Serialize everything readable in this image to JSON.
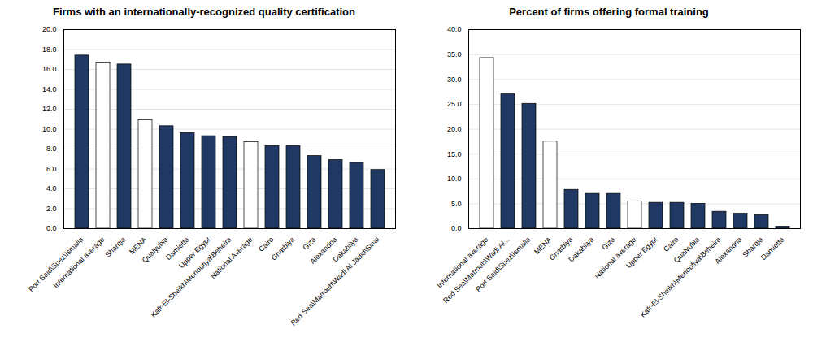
{
  "chart_data": [
    {
      "type": "bar",
      "title": "Firms with an internationally-recognized quality certification",
      "categories": [
        "Port Said\\Suez\\Ismalia",
        "International average",
        "Sharqia",
        "MENA",
        "Qualyubia",
        "Damietta",
        "Upper Egypt",
        "Kafr-El-Sheikh\\Menoufiya\\Beheira",
        "National Average",
        "Cairo",
        "Gharbiya",
        "Giza",
        "Alexandria",
        "Dakahliya",
        "Red Sea\\Matrouh\\Wadi Al Jadid\\Sinai"
      ],
      "values": [
        17.4,
        16.7,
        16.5,
        10.9,
        10.3,
        9.6,
        9.3,
        9.2,
        8.7,
        8.3,
        8.3,
        7.3,
        6.9,
        6.6,
        5.9
      ],
      "colors": [
        "#1f3864",
        "#ffffff",
        "#1f3864",
        "#ffffff",
        "#1f3864",
        "#1f3864",
        "#1f3864",
        "#1f3864",
        "#ffffff",
        "#1f3864",
        "#1f3864",
        "#1f3864",
        "#1f3864",
        "#1f3864",
        "#1f3864"
      ],
      "ylim": [
        0,
        20.0
      ],
      "yticks": [
        {
          "value": 0,
          "label": "0.0"
        },
        {
          "value": 2,
          "label": "2.0"
        },
        {
          "value": 4,
          "label": "4.0"
        },
        {
          "value": 6,
          "label": "6.0"
        },
        {
          "value": 8,
          "label": "8.0"
        },
        {
          "value": 10,
          "label": "10.0"
        },
        {
          "value": 12,
          "label": "12.0"
        },
        {
          "value": 14,
          "label": "14.0"
        },
        {
          "value": 16,
          "label": "16.0"
        },
        {
          "value": 18,
          "label": "18.0"
        },
        {
          "value": 20,
          "label": "20.0"
        }
      ],
      "grid": true
    },
    {
      "type": "bar",
      "title": "Percent of firms offering formal training",
      "categories": [
        "International average",
        "Red Sea\\Matrouh\\Wadi Al...",
        "Port Said\\Suez\\Ismalia",
        "MENA",
        "Gharbiya",
        "Dakahliya",
        "Giza",
        "National average",
        "Upper Egypt",
        "Cairo",
        "Qualyubia",
        "Kafr-El-Sheikh\\Menoufiya\\Beheira",
        "Alexandria",
        "Sharqia",
        "Damietta"
      ],
      "values": [
        34.3,
        27.0,
        25.1,
        17.5,
        7.8,
        7.0,
        7.0,
        5.5,
        5.2,
        5.2,
        5.0,
        3.4,
        3.0,
        2.7,
        0.4
      ],
      "colors": [
        "#ffffff",
        "#1f3864",
        "#1f3864",
        "#ffffff",
        "#1f3864",
        "#1f3864",
        "#1f3864",
        "#ffffff",
        "#1f3864",
        "#1f3864",
        "#1f3864",
        "#1f3864",
        "#1f3864",
        "#1f3864",
        "#1f3864"
      ],
      "ylim": [
        0,
        40.0
      ],
      "yticks": [
        {
          "value": 0,
          "label": "0.0"
        },
        {
          "value": 5,
          "label": "5.0"
        },
        {
          "value": 10,
          "label": "10.0"
        },
        {
          "value": 15,
          "label": "15.0"
        },
        {
          "value": 20,
          "label": "20.0"
        },
        {
          "value": 25,
          "label": "25.0"
        },
        {
          "value": 30,
          "label": "30.0"
        },
        {
          "value": 35,
          "label": "35.0"
        },
        {
          "value": 40,
          "label": "40.0"
        }
      ],
      "grid": true
    }
  ]
}
